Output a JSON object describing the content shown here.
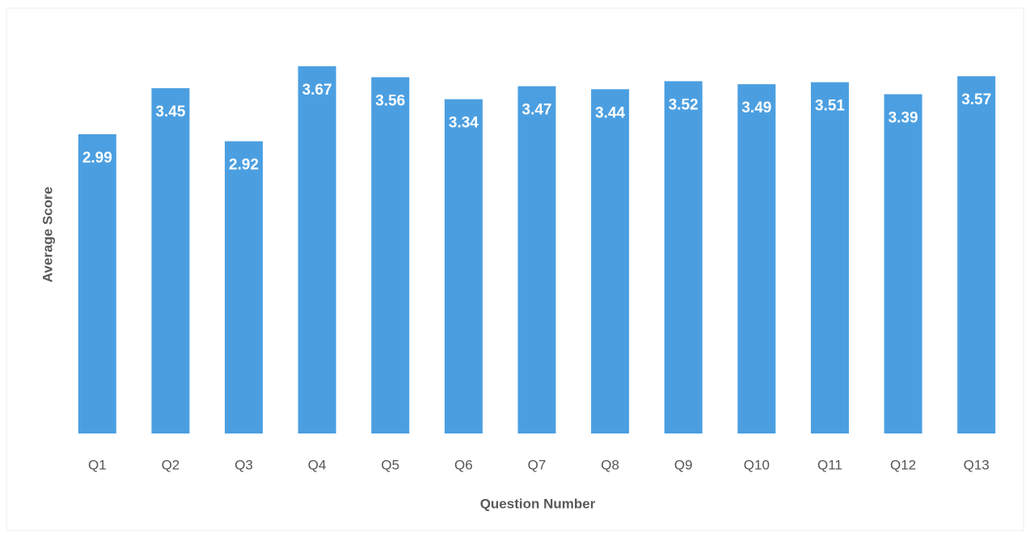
{
  "chart_data": {
    "type": "bar",
    "x_label": "Question Number",
    "y_label": "Average Score",
    "categories": [
      "Q1",
      "Q2",
      "Q3",
      "Q4",
      "Q5",
      "Q6",
      "Q7",
      "Q8",
      "Q9",
      "Q10",
      "Q11",
      "Q12",
      "Q13"
    ],
    "values": [
      2.99,
      3.45,
      2.92,
      3.67,
      3.56,
      3.34,
      3.47,
      3.44,
      3.52,
      3.49,
      3.51,
      3.39,
      3.57
    ],
    "color": "#4b9fe1",
    "ylim": [
      0,
      4
    ]
  }
}
